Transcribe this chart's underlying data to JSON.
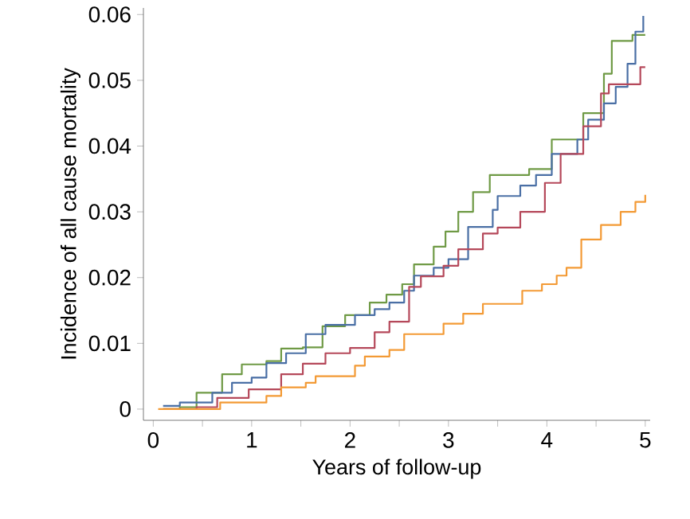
{
  "chart_data": {
    "type": "step",
    "xlabel": "Years of follow-up",
    "ylabel": "Incidence of all cause mortality",
    "xlim": [
      -0.1,
      5.05
    ],
    "ylim": [
      -0.0017,
      0.061
    ],
    "xticks": [
      0,
      {
        "value": 0.5,
        "label": null
      },
      1,
      {
        "value": 1.5,
        "label": null
      },
      2,
      {
        "value": 2.5,
        "label": null
      },
      3,
      {
        "value": 3.5,
        "label": null
      },
      4,
      {
        "value": 4.5,
        "label": null
      },
      5
    ],
    "yticks": [
      0,
      0.01,
      0.02,
      0.03,
      0.04,
      0.05,
      0.06
    ],
    "grid": false,
    "marker": "none",
    "line_style": "solid",
    "series": [
      {
        "color": "#6f9a45",
        "x": [
          0.1,
          0.27,
          0.44,
          0.7,
          0.9,
          1.15,
          1.3,
          1.52,
          1.72,
          1.95,
          2.2,
          2.37,
          2.53,
          2.65,
          2.85,
          2.97,
          3.1,
          3.25,
          3.42,
          3.82,
          4.05,
          4.37,
          4.58,
          4.66,
          4.87,
          5.0
        ],
        "values": [
          0.0,
          0.0003,
          0.0025,
          0.0053,
          0.0068,
          0.0073,
          0.0092,
          0.0094,
          0.0126,
          0.0143,
          0.0162,
          0.0174,
          0.019,
          0.022,
          0.0247,
          0.027,
          0.03,
          0.033,
          0.0356,
          0.0365,
          0.041,
          0.045,
          0.051,
          0.056,
          0.0569,
          0.0569
        ]
      },
      {
        "color": "#4a6fa5",
        "x": [
          0.1,
          0.27,
          0.6,
          0.8,
          1.0,
          1.15,
          1.35,
          1.55,
          1.75,
          2.05,
          2.25,
          2.4,
          2.55,
          2.65,
          2.85,
          3.0,
          3.2,
          3.45,
          3.5,
          3.73,
          3.89,
          4.05,
          4.31,
          4.42,
          4.58,
          4.7,
          4.82,
          4.9,
          4.98
        ],
        "values": [
          0.0005,
          0.001,
          0.0025,
          0.004,
          0.0048,
          0.007,
          0.0085,
          0.0114,
          0.0128,
          0.0143,
          0.0152,
          0.0162,
          0.018,
          0.0203,
          0.0215,
          0.0228,
          0.0277,
          0.0303,
          0.0324,
          0.034,
          0.0356,
          0.0388,
          0.041,
          0.044,
          0.0465,
          0.049,
          0.0525,
          0.0574,
          0.0598
        ]
      },
      {
        "color": "#b5485a",
        "x": [
          0.1,
          0.44,
          0.65,
          0.97,
          1.3,
          1.52,
          1.75,
          2.0,
          2.25,
          2.4,
          2.6,
          2.72,
          2.95,
          3.1,
          3.35,
          3.5,
          3.73,
          3.98,
          4.14,
          4.37,
          4.55,
          4.63,
          4.95,
          5.0
        ],
        "values": [
          0.0,
          0.0003,
          0.0017,
          0.003,
          0.0053,
          0.0069,
          0.0085,
          0.0093,
          0.0117,
          0.0133,
          0.0186,
          0.0202,
          0.0218,
          0.0243,
          0.0267,
          0.0276,
          0.03,
          0.0344,
          0.0388,
          0.043,
          0.048,
          0.0494,
          0.052,
          0.052
        ]
      },
      {
        "color": "#f39a35",
        "x": [
          0.05,
          0.68,
          1.15,
          1.3,
          1.55,
          1.65,
          2.05,
          2.15,
          2.4,
          2.55,
          2.95,
          3.15,
          3.35,
          3.75,
          3.95,
          4.1,
          4.2,
          4.35,
          4.55,
          4.75,
          4.9,
          5.0
        ],
        "values": [
          0.0,
          0.001,
          0.002,
          0.0033,
          0.004,
          0.005,
          0.0066,
          0.008,
          0.009,
          0.0114,
          0.013,
          0.0145,
          0.016,
          0.018,
          0.019,
          0.0203,
          0.0215,
          0.0258,
          0.028,
          0.03,
          0.0315,
          0.0326
        ]
      }
    ]
  }
}
